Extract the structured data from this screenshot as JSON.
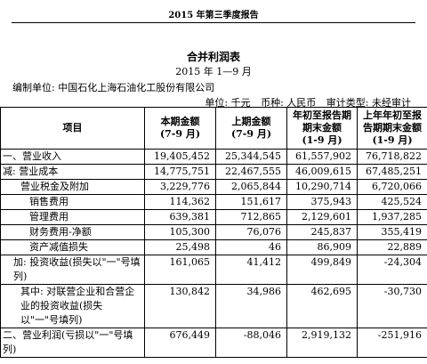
{
  "header": {
    "title": "2015 年第三季度报告"
  },
  "report": {
    "title": "合并利润表",
    "period": "2015 年 1—9 月",
    "unit_label": "编制单位: 中国石化上海石油化工股份有限公司",
    "unit": "单位: 千元",
    "currency": "币种: 人民币",
    "audit": "审计类型: 未经审计"
  },
  "table": {
    "headers": {
      "item": "项目",
      "current": [
        "本期金额",
        "(7-9 月)"
      ],
      "previous": [
        "上期金额",
        "(7-9 月)"
      ],
      "ytd": [
        "年初至报告期",
        "期末金额",
        "(1-9 月)"
      ],
      "prev_ytd": [
        "上年年初至报",
        "告期期末金额",
        "(1-9 月)"
      ]
    },
    "rows": [
      {
        "label": "一、营业收入",
        "values": [
          "19,405,452",
          "25,344,545",
          "61,557,902",
          "76,718,822"
        ]
      },
      {
        "label": "减: 营业成本",
        "values": [
          "14,775,751",
          "22,467,555",
          "46,009,615",
          "67,485,251"
        ]
      },
      {
        "label": "营业税金及附加",
        "values": [
          "3,229,776",
          "2,065,844",
          "10,290,714",
          "6,720,066"
        ]
      },
      {
        "label": "销售费用",
        "values": [
          "114,362",
          "151,617",
          "375,943",
          "425,524"
        ]
      },
      {
        "label": "管理费用",
        "values": [
          "639,381",
          "712,865",
          "2,129,601",
          "1,937,285"
        ]
      },
      {
        "label": "财务费用-净额",
        "values": [
          "105,300",
          "76,076",
          "245,837",
          "355,419"
        ]
      },
      {
        "label": "资产减值损失",
        "values": [
          "25,498",
          "46",
          "86,909",
          "22,889"
        ]
      },
      {
        "label": "加: 投资收益(损失以\"一\"号填列)",
        "values": [
          "161,065",
          "41,412",
          "499,849",
          "-24,304"
        ]
      },
      {
        "label": "其中: 对联营企业和合营企业的投资收益(损失以\"一\"号填列)",
        "values": [
          "130,842",
          "34,986",
          "462,695",
          "-30,730"
        ]
      },
      {
        "label": "二、营业利润(亏损以\"一\"号填列)",
        "values": [
          "676,449",
          "-88,046",
          "2,919,132",
          "-251,916"
        ]
      }
    ]
  }
}
